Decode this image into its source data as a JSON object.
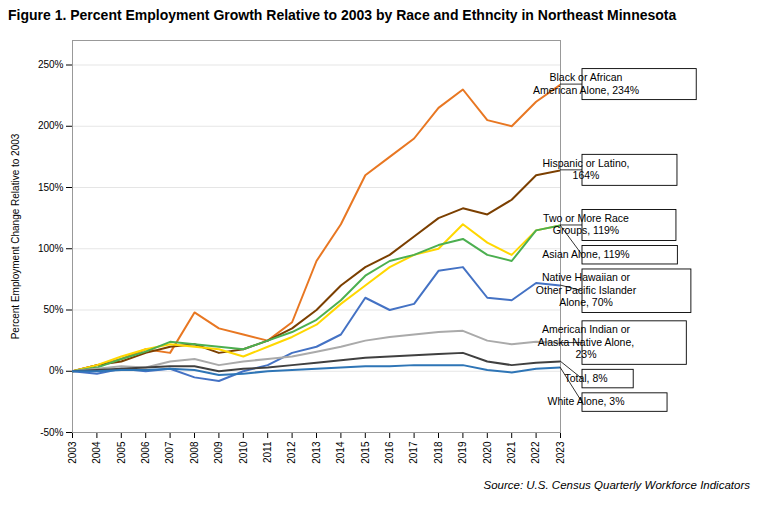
{
  "chart_data": {
    "type": "line",
    "title": "Figure 1. Percent Employment Growth Relative to 2003 by Race and Ethncity in Northeast Minnesota",
    "ylabel": "Percent Employment Change Relative to 2003",
    "caption": "Source: U.S. Census Quarterly Workforce Indicators",
    "x": [
      2003,
      2004,
      2005,
      2006,
      2007,
      2008,
      2009,
      2010,
      2011,
      2012,
      2013,
      2014,
      2015,
      2016,
      2017,
      2018,
      2019,
      2020,
      2021,
      2022,
      2023
    ],
    "xlim": [
      2003,
      2023
    ],
    "xticks": [
      2003,
      2004,
      2005,
      2006,
      2007,
      2008,
      2009,
      2010,
      2011,
      2012,
      2013,
      2014,
      2015,
      2016,
      2017,
      2018,
      2019,
      2020,
      2021,
      2022,
      2023
    ],
    "ylim": [
      -50,
      270
    ],
    "yticks": [
      {
        "value": -50,
        "label": "-50%"
      },
      {
        "value": 0,
        "label": "0%"
      },
      {
        "value": 50,
        "label": "50%"
      },
      {
        "value": 100,
        "label": "100%"
      },
      {
        "value": 150,
        "label": "150%"
      },
      {
        "value": 200,
        "label": "200%"
      },
      {
        "value": 250,
        "label": "250%"
      }
    ],
    "grid": "y",
    "series": [
      {
        "label": "Black or African\nAmerican Alone, 234%",
        "color": "#E87722",
        "values": [
          0,
          5,
          10,
          18,
          15,
          48,
          35,
          30,
          25,
          40,
          90,
          120,
          160,
          175,
          190,
          215,
          230,
          205,
          200,
          220,
          234
        ]
      },
      {
        "label": "Hispanic or Latino,\n164%",
        "color": "#7B3F00",
        "values": [
          0,
          5,
          8,
          15,
          20,
          22,
          15,
          18,
          25,
          35,
          50,
          70,
          85,
          95,
          110,
          125,
          133,
          128,
          140,
          160,
          164
        ]
      },
      {
        "label": "Two or More Race\nGroups, 119%",
        "color": "#FFD700",
        "values": [
          0,
          5,
          12,
          18,
          22,
          20,
          18,
          12,
          20,
          28,
          38,
          55,
          70,
          85,
          95,
          100,
          120,
          105,
          95,
          115,
          119
        ]
      },
      {
        "label": "Asian Alone, 119%",
        "color": "#4CAF50",
        "values": [
          0,
          3,
          10,
          16,
          24,
          22,
          20,
          18,
          25,
          32,
          42,
          58,
          78,
          90,
          95,
          103,
          108,
          95,
          90,
          115,
          119
        ]
      },
      {
        "label": "Native Hawaiian or\nOther Pacific Islander\nAlone, 70%",
        "color": "#4472C4",
        "values": [
          0,
          -2,
          2,
          0,
          2,
          -5,
          -8,
          0,
          5,
          15,
          20,
          30,
          60,
          50,
          55,
          82,
          85,
          60,
          58,
          72,
          70
        ]
      },
      {
        "label": "American Indian or\nAlaska Native Alone,\n23%",
        "color": "#AAAAAA",
        "values": [
          0,
          2,
          4,
          3,
          8,
          10,
          5,
          8,
          10,
          12,
          16,
          20,
          25,
          28,
          30,
          32,
          33,
          25,
          22,
          24,
          23
        ]
      },
      {
        "label": "Total, 8%",
        "color": "#404040",
        "values": [
          0,
          1,
          2,
          3,
          4,
          4,
          0,
          2,
          3,
          5,
          7,
          9,
          11,
          12,
          13,
          14,
          15,
          8,
          5,
          7,
          8
        ]
      },
      {
        "label": "White Alone, 3%",
        "color": "#2E75B6",
        "values": [
          0,
          0,
          1,
          1,
          2,
          1,
          -3,
          -2,
          0,
          1,
          2,
          3,
          4,
          4,
          5,
          5,
          5,
          1,
          -1,
          2,
          3
        ]
      }
    ]
  }
}
